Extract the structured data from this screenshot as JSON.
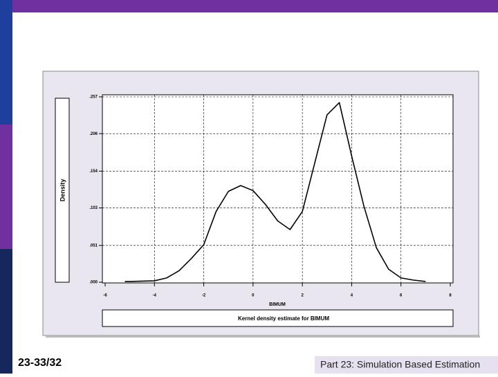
{
  "slide": {
    "number": "23-33/32",
    "footer": "Part 23: Simulation Based Estimation"
  },
  "chart_data": {
    "type": "line",
    "ylabel": "Density",
    "xlabel": "BIMUM",
    "caption": "Kernel density estimate for BIMUM",
    "x": [
      -5.2,
      -5,
      -4.5,
      -4,
      -3.5,
      -3,
      -2.5,
      -2,
      -1.5,
      -1,
      -0.5,
      0,
      0.5,
      1,
      1.5,
      2,
      2.5,
      3,
      3.5,
      4,
      4.5,
      5,
      5.5,
      6,
      6.5,
      7
    ],
    "values": [
      0.001,
      0.001,
      0.0015,
      0.002,
      0.006,
      0.016,
      0.033,
      0.052,
      0.098,
      0.126,
      0.134,
      0.127,
      0.108,
      0.085,
      0.073,
      0.098,
      0.165,
      0.232,
      0.249,
      0.175,
      0.105,
      0.048,
      0.018,
      0.006,
      0.003,
      0.001
    ],
    "color": "#000000",
    "xlim": [
      -6,
      8
    ],
    "xticks": [
      -6,
      -4,
      -2,
      0,
      2,
      4,
      6,
      8
    ],
    "ylim": [
      0,
      0.257
    ],
    "yticks": [
      {
        "value": 0,
        "label": ".000"
      },
      {
        "value": 0.051,
        "label": ".051"
      },
      {
        "value": 0.103,
        "label": ".103"
      },
      {
        "value": 0.154,
        "label": ".154"
      },
      {
        "value": 0.206,
        "label": ".206"
      },
      {
        "value": 0.257,
        "label": ".257"
      }
    ],
    "grid": true
  }
}
